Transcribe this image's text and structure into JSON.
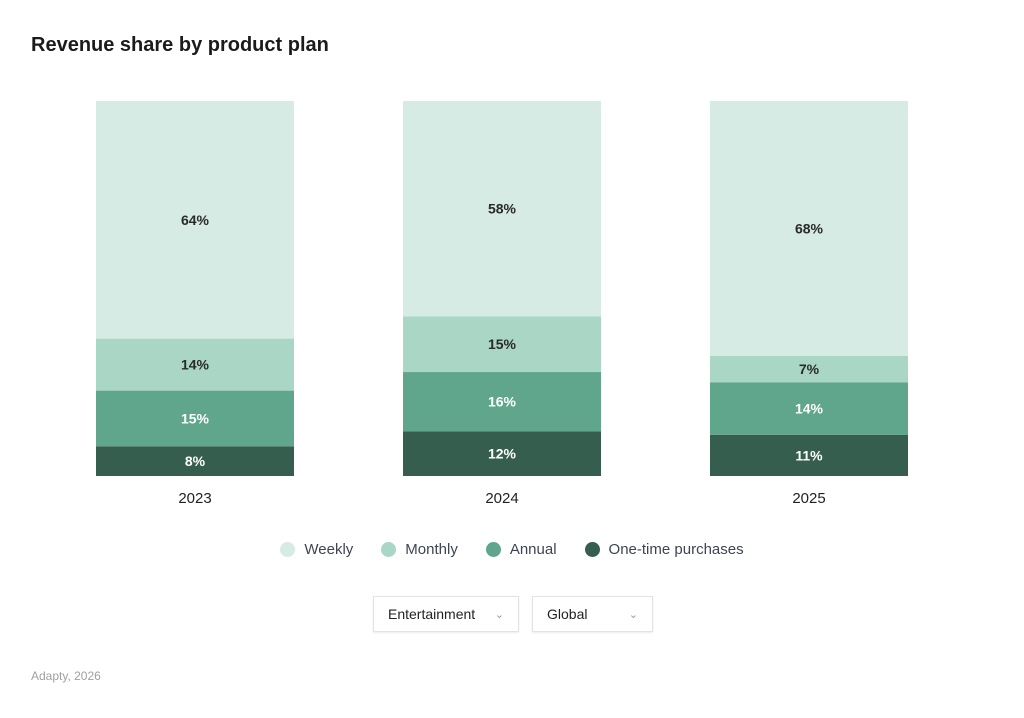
{
  "title": "Revenue share by product plan",
  "chart_data": {
    "type": "bar",
    "stacked": true,
    "title": "Revenue share by product plan",
    "categories": [
      "2023",
      "2024",
      "2025"
    ],
    "series": [
      {
        "name": "One-time purchases",
        "values": [
          8,
          12,
          11
        ],
        "color": "#365e4f",
        "label_color": "#ffffff"
      },
      {
        "name": "Annual",
        "values": [
          15,
          16,
          14
        ],
        "color": "#5fa68c",
        "label_color": "#ffffff"
      },
      {
        "name": "Monthly",
        "values": [
          14,
          15,
          7
        ],
        "color": "#aad6c6",
        "label_color": "#2a2a2a"
      },
      {
        "name": "Weekly",
        "values": [
          64,
          58,
          68
        ],
        "color": "#d5ebe3",
        "label_color": "#2a2a2a"
      }
    ],
    "value_suffix": "%",
    "legend_position": "bottom",
    "grid": false
  },
  "legend": [
    {
      "label": "Weekly",
      "color": "#d5ebe3"
    },
    {
      "label": "Monthly",
      "color": "#aad6c6"
    },
    {
      "label": "Annual",
      "color": "#5fa68c"
    },
    {
      "label": "One-time purchases",
      "color": "#365e4f"
    }
  ],
  "filters": {
    "category": "Entertainment",
    "region": "Global",
    "chevron_icon": "chevron-down-icon"
  },
  "footer": "Adapty, 2026"
}
